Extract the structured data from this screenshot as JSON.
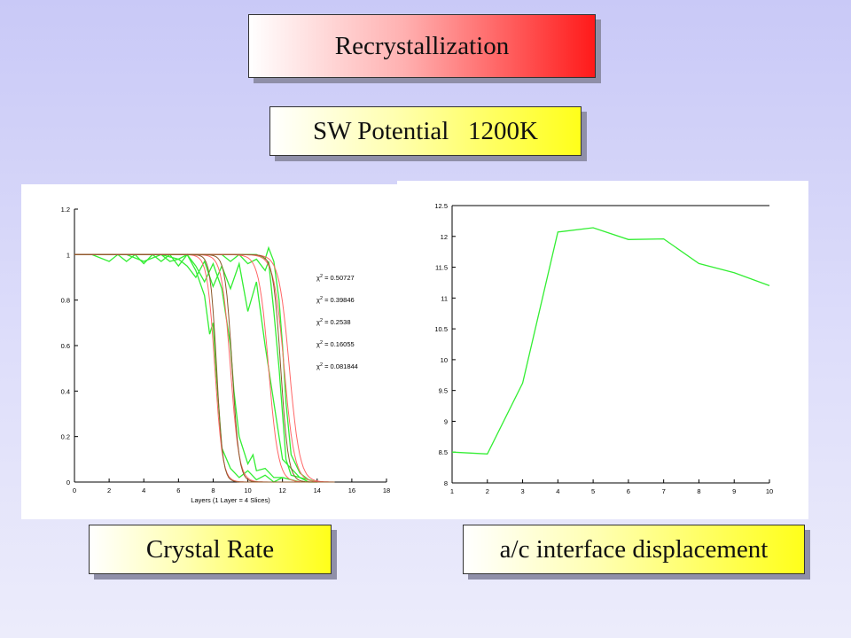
{
  "title_box": {
    "label": "Recrystallization"
  },
  "subtitle_box": {
    "label": "SW Potential   1200K"
  },
  "caption_left": {
    "label": "Crystal Rate"
  },
  "caption_right": {
    "label": "a/c interface displacement"
  },
  "colors": {
    "red_gradient_end": "#ff1a1a",
    "yellow_gradient_end": "#ffff1a",
    "green_series": "#33ee33",
    "red_series": "#ff6666",
    "brown_series": "#8b5a2b"
  },
  "chart_data": [
    {
      "type": "line",
      "xlabel": "Layers (1 Layer = 4 Slices)",
      "ylabel": "",
      "xlim": [
        0,
        18
      ],
      "ylim": [
        0,
        1.2
      ],
      "xticks": [
        0,
        2,
        4,
        6,
        8,
        10,
        12,
        14,
        16,
        18
      ],
      "yticks": [
        0,
        0.2,
        0.4,
        0.6,
        0.8,
        1,
        1.2
      ],
      "xtick_labels": [
        "0",
        "2",
        "4",
        "6",
        "8",
        "10",
        "12",
        "14",
        "16",
        "18"
      ],
      "ytick_labels": [
        "0",
        "0.2",
        "0.4",
        "0.6",
        "0.8",
        "1",
        "1.2"
      ],
      "annotations": [
        {
          "prefix": "χ",
          "sup": "2",
          "text": " = 0.50727"
        },
        {
          "prefix": "χ",
          "sup": "2",
          "text": " = 0.39846"
        },
        {
          "prefix": "χ",
          "sup": "2",
          "text": " = 0.2538"
        },
        {
          "prefix": "χ",
          "sup": "2",
          "text": " = 0.16055"
        },
        {
          "prefix": "χ",
          "sup": "2",
          "text": " = 0.081844"
        }
      ],
      "series": [
        {
          "kind": "data",
          "color": "#33ee33",
          "x": [
            0,
            1,
            2,
            2.5,
            3,
            3.5,
            4,
            4.5,
            5,
            5.5,
            6,
            6.5,
            7,
            7.5,
            7.8,
            8,
            8.2,
            8.5,
            9,
            9.5,
            10,
            10.5,
            11,
            11.5,
            12,
            13
          ],
          "y": [
            1,
            1,
            0.97,
            1,
            0.97,
            1,
            0.96,
            1,
            0.97,
            1,
            0.95,
            1,
            0.93,
            0.82,
            0.65,
            0.7,
            0.45,
            0.15,
            0.06,
            0.02,
            0.05,
            0.01,
            0.03,
            0.0,
            0.02,
            0
          ]
        },
        {
          "kind": "data",
          "color": "#33ee33",
          "x": [
            0,
            2,
            3,
            4,
            5,
            6,
            6.5,
            7,
            7.5,
            8,
            8.5,
            9,
            9.2,
            9.5,
            10,
            10.3,
            10.5,
            11,
            11.5,
            12,
            13
          ],
          "y": [
            1,
            1,
            1,
            0.97,
            1,
            0.98,
            1,
            0.95,
            0.88,
            0.96,
            0.85,
            0.6,
            0.4,
            0.2,
            0.08,
            0.12,
            0.05,
            0.06,
            0.02,
            0.02,
            0
          ]
        },
        {
          "kind": "data",
          "color": "#33ee33",
          "x": [
            0,
            4,
            5,
            5.5,
            6,
            6.5,
            7,
            7.5,
            8,
            8.5,
            9,
            9.5,
            10,
            10.5,
            11,
            11.5,
            12,
            12.5,
            13,
            14
          ],
          "y": [
            1,
            1,
            1,
            0.97,
            0.98,
            0.95,
            0.9,
            0.97,
            0.86,
            0.95,
            0.85,
            0.96,
            0.75,
            0.88,
            0.6,
            0.35,
            0.1,
            0.06,
            0.02,
            0
          ]
        },
        {
          "kind": "data",
          "color": "#33ee33",
          "x": [
            0,
            8,
            8.5,
            9,
            9.5,
            10,
            10.5,
            11,
            11.2,
            11.5,
            11.8,
            12,
            12.2,
            12.5,
            13,
            13.5,
            14
          ],
          "y": [
            1,
            1,
            1,
            0.97,
            1,
            0.96,
            0.98,
            0.93,
            0.97,
            0.75,
            0.5,
            0.3,
            0.1,
            0.03,
            0.02,
            0.0,
            0
          ]
        },
        {
          "kind": "data",
          "color": "#33ee33",
          "x": [
            0,
            9,
            10,
            10.5,
            11,
            11.2,
            11.5,
            11.8,
            12,
            12.2,
            12.5,
            13,
            13.5,
            14
          ],
          "y": [
            1,
            1,
            1,
            1,
            0.98,
            1.03,
            0.97,
            0.8,
            0.6,
            0.35,
            0.12,
            0.04,
            0.01,
            0
          ]
        },
        {
          "kind": "fit",
          "color": "#ff6666",
          "center": 8.1,
          "width": 0.22
        },
        {
          "kind": "fit",
          "color": "#ff6666",
          "center": 9.0,
          "width": 0.25
        },
        {
          "kind": "fit",
          "color": "#ff6666",
          "center": 11.2,
          "width": 0.28
        },
        {
          "kind": "fit",
          "color": "#ff6666",
          "center": 12.1,
          "width": 0.3
        },
        {
          "kind": "fit",
          "color": "#ff6666",
          "center": 12.4,
          "width": 0.3
        },
        {
          "kind": "fit",
          "color": "#8b5a2b",
          "center": 8.2,
          "width": 0.18
        },
        {
          "kind": "fit",
          "color": "#8b5a2b",
          "center": 9.1,
          "width": 0.2
        },
        {
          "kind": "fit",
          "color": "#8b5a2b",
          "center": 11.9,
          "width": 0.22
        }
      ]
    },
    {
      "type": "line",
      "xlabel": "",
      "ylabel": "",
      "xlim": [
        1,
        10
      ],
      "ylim": [
        8,
        12.5
      ],
      "xticks": [
        1,
        2,
        3,
        4,
        5,
        6,
        7,
        8,
        9,
        10
      ],
      "yticks": [
        8,
        8.5,
        9,
        9.5,
        10,
        10.5,
        11,
        11.5,
        12,
        12.5
      ],
      "xtick_labels": [
        "1",
        "2",
        "3",
        "4",
        "5",
        "6",
        "7",
        "8",
        "9",
        "10"
      ],
      "ytick_labels": [
        "8",
        "8.5",
        "9",
        "9.5",
        "10",
        "10.5",
        "11",
        "11.5",
        "12",
        "12.5"
      ],
      "series": [
        {
          "kind": "data",
          "color": "#33ee33",
          "x": [
            1,
            2,
            3,
            4,
            5,
            6,
            7,
            8,
            9,
            10
          ],
          "y": [
            8.5,
            8.47,
            9.62,
            12.07,
            12.14,
            11.95,
            11.96,
            11.56,
            11.41,
            11.2
          ]
        }
      ]
    }
  ]
}
